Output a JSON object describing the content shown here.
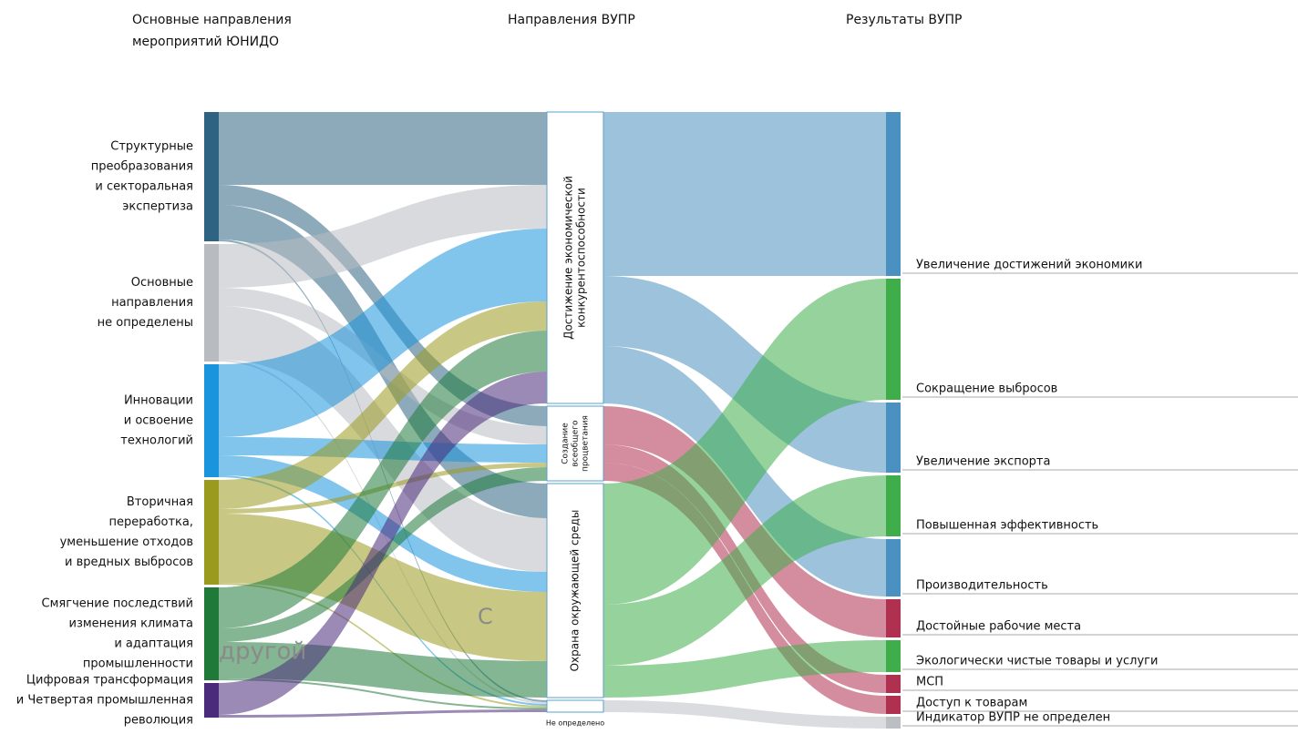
{
  "chart_data": {
    "type": "sankey",
    "headers": [
      [
        "Основные направления",
        "мероприятий ЮНИДО"
      ],
      [
        "Направления ВУПР"
      ],
      [
        "Результаты ВУПР"
      ]
    ],
    "annotations": [
      "другой",
      "С"
    ],
    "nodes": [
      {
        "column": 0,
        "color": "#2e6482",
        "label": [
          "Структурные",
          "преобразования",
          "и секторальная",
          "экспертиза"
        ]
      },
      {
        "column": 0,
        "color": "#b8bcc1",
        "label": [
          "Основные",
          "направления",
          "не определены"
        ]
      },
      {
        "column": 0,
        "color": "#1a94dc",
        "label": [
          "Инновации",
          "и освоение",
          "технологий"
        ]
      },
      {
        "column": 0,
        "color": "#9a9a1f",
        "label": [
          "Вторичная",
          "переработка,",
          "уменьшение отходов",
          "и вредных выбросов"
        ]
      },
      {
        "column": 0,
        "color": "#1f7a3a",
        "label": [
          "Смягчение последствий",
          "изменения климата",
          "и адаптация",
          "промышленности"
        ]
      },
      {
        "column": 0,
        "color": "#4a2a7a",
        "label": [
          "Цифровая трансформация",
          "и Четвертая промышленная",
          "революция"
        ]
      },
      {
        "column": 1,
        "color": "#ffffff",
        "label": [
          "Достижение экономической",
          "конкурентоспособности"
        ]
      },
      {
        "column": 1,
        "color": "#ffffff",
        "label": [
          "Создание",
          "всеобщего",
          "процветания"
        ]
      },
      {
        "column": 1,
        "color": "#ffffff",
        "label": [
          "Охрана окружающей среды"
        ]
      },
      {
        "column": 1,
        "color": "#ffffff",
        "label": [
          "Не определено"
        ]
      },
      {
        "column": 2,
        "color": "#4a90c0",
        "label": [
          "Увеличение достижений экономики"
        ]
      },
      {
        "column": 2,
        "color": "#3fae4a",
        "label": [
          "Сокращение выбросов"
        ]
      },
      {
        "column": 2,
        "color": "#4a90c0",
        "label": [
          "Увеличение экспорта"
        ]
      },
      {
        "column": 2,
        "color": "#3fae4a",
        "label": [
          "Повышенная эффективность"
        ]
      },
      {
        "column": 2,
        "color": "#4a90c0",
        "label": [
          "Производительность"
        ]
      },
      {
        "column": 2,
        "color": "#b03050",
        "label": [
          "Достойные рабочие места"
        ]
      },
      {
        "column": 2,
        "color": "#3fae4a",
        "label": [
          "Экологически чистые товары и услуги"
        ]
      },
      {
        "column": 2,
        "color": "#b03050",
        "label": [
          "МСП"
        ]
      },
      {
        "column": 2,
        "color": "#b03050",
        "label": [
          "Доступ к товарам"
        ]
      },
      {
        "column": 2,
        "color": "#bbbfc4",
        "label": [
          "Индикатор ВУПР не определен"
        ]
      }
    ],
    "links": [
      {
        "source": 0,
        "target": 6,
        "value": 80
      },
      {
        "source": 0,
        "target": 7,
        "value": 22
      },
      {
        "source": 0,
        "target": 8,
        "value": 38
      },
      {
        "source": 0,
        "target": 9,
        "value": 2
      },
      {
        "source": 1,
        "target": 6,
        "value": 48
      },
      {
        "source": 1,
        "target": 7,
        "value": 20
      },
      {
        "source": 1,
        "target": 8,
        "value": 59
      },
      {
        "source": 1,
        "target": 9,
        "value": 2
      },
      {
        "source": 2,
        "target": 6,
        "value": 80
      },
      {
        "source": 2,
        "target": 7,
        "value": 20
      },
      {
        "source": 2,
        "target": 8,
        "value": 22
      },
      {
        "source": 2,
        "target": 9,
        "value": 2
      },
      {
        "source": 3,
        "target": 6,
        "value": 32
      },
      {
        "source": 3,
        "target": 7,
        "value": 5
      },
      {
        "source": 3,
        "target": 8,
        "value": 76
      },
      {
        "source": 3,
        "target": 9,
        "value": 2
      },
      {
        "source": 4,
        "target": 6,
        "value": 45
      },
      {
        "source": 4,
        "target": 7,
        "value": 15
      },
      {
        "source": 4,
        "target": 8,
        "value": 40
      },
      {
        "source": 4,
        "target": 9,
        "value": 2
      },
      {
        "source": 5,
        "target": 6,
        "value": 35
      },
      {
        "source": 5,
        "target": 9,
        "value": 3
      },
      {
        "source": 6,
        "target": 10,
        "value": 180
      },
      {
        "source": 6,
        "target": 12,
        "value": 77
      },
      {
        "source": 6,
        "target": 14,
        "value": 63
      },
      {
        "source": 7,
        "target": 15,
        "value": 42
      },
      {
        "source": 7,
        "target": 17,
        "value": 20
      },
      {
        "source": 7,
        "target": 18,
        "value": 20
      },
      {
        "source": 8,
        "target": 11,
        "value": 133
      },
      {
        "source": 8,
        "target": 13,
        "value": 67
      },
      {
        "source": 8,
        "target": 16,
        "value": 35
      },
      {
        "source": 9,
        "target": 19,
        "value": 13
      }
    ]
  }
}
